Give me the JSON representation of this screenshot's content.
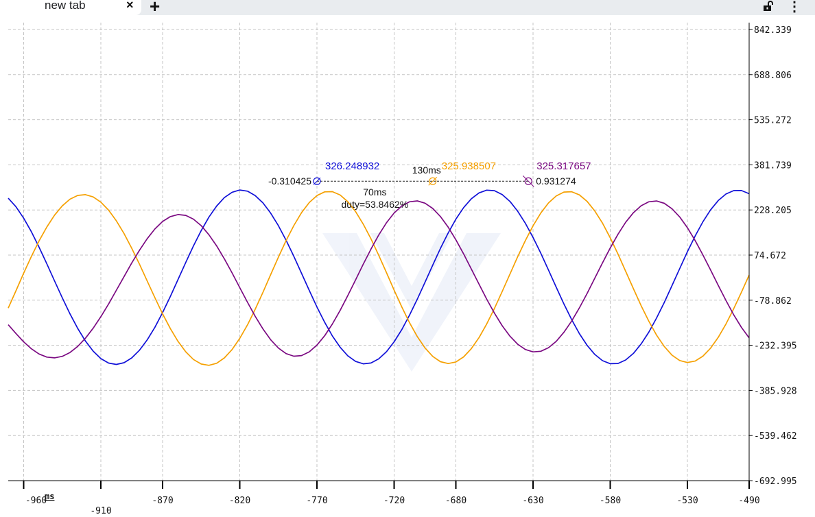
{
  "browser": {
    "tab_title": "new tab",
    "close_glyph": "×",
    "newtab_glyph": "+",
    "lock_icon": "unlock-icon",
    "menu_glyph": "⋮"
  },
  "chart_data": {
    "type": "line",
    "x_unit": "ms",
    "xlim": [
      -970,
      -490
    ],
    "ylim": [
      -692.995,
      842.339
    ],
    "y_ticks": [
      "842.339",
      "688.806",
      "535.272",
      "381.739",
      "228.205",
      "74.672",
      "-78.862",
      "-232.395",
      "-385.928",
      "-539.462",
      "-692.995"
    ],
    "x_ticks": [
      "-960",
      "-910",
      "-870",
      "-820",
      "-770",
      "-720",
      "-680",
      "-630",
      "-580",
      "-530",
      "-490"
    ],
    "grid": true,
    "series": [
      {
        "color": "#1010d8",
        "points": [
          [
            -970,
            268.2
          ],
          [
            -965,
            238.9
          ],
          [
            -960,
            200.2
          ],
          [
            -955,
            153.7
          ],
          [
            -950,
            101.3
          ],
          [
            -945,
            44.9
          ],
          [
            -940,
            -13.3
          ],
          [
            -935,
            -70.8
          ],
          [
            -930,
            -125.4
          ],
          [
            -925,
            -175.1
          ],
          [
            -920,
            -217.8
          ],
          [
            -915,
            -252.3
          ],
          [
            -910,
            -277.6
          ],
          [
            -905,
            -292.8
          ],
          [
            -900,
            -297.5
          ],
          [
            -895,
            -291.6
          ],
          [
            -890,
            -275.3
          ],
          [
            -885,
            -249.2
          ],
          [
            -880,
            -214.2
          ],
          [
            -875,
            -171.0
          ],
          [
            -870,
            -121.1
          ],
          [
            -865,
            -66.3
          ],
          [
            -860,
            -8.5
          ],
          [
            -855,
            49.8
          ],
          [
            -850,
            106.0
          ],
          [
            -845,
            158.0
          ],
          [
            -840,
            203.8
          ],
          [
            -835,
            241.6
          ],
          [
            -830,
            270.2
          ],
          [
            -825,
            288.5
          ],
          [
            -820,
            296.0
          ],
          [
            -815,
            292.2
          ],
          [
            -810,
            277.3
          ],
          [
            -805,
            252.2
          ],
          [
            -800,
            217.5
          ],
          [
            -795,
            174.7
          ],
          [
            -790,
            125.0
          ],
          [
            -785,
            70.4
          ],
          [
            -780,
            12.8
          ],
          [
            -775,
            -45.5
          ],
          [
            -770,
            -102.0
          ],
          [
            -765,
            -154.3
          ],
          [
            -760,
            -200.6
          ],
          [
            -755,
            -238.9
          ],
          [
            -750,
            -268.1
          ],
          [
            -745,
            -287.2
          ],
          [
            -740,
            -295.5
          ],
          [
            -735,
            -292.6
          ],
          [
            -730,
            -278.6
          ],
          [
            -725,
            -254.3
          ],
          [
            -720,
            -220.4
          ],
          [
            -715,
            -178.4
          ],
          [
            -710,
            -129.4
          ],
          [
            -705,
            -75.3
          ],
          [
            -700,
            -17.9
          ],
          [
            -695,
            40.5
          ],
          [
            -690,
            97.3
          ],
          [
            -685,
            149.9
          ],
          [
            -680,
            196.9
          ],
          [
            -675,
            236.1
          ],
          [
            -670,
            266.2
          ],
          [
            -665,
            286.3
          ],
          [
            -660,
            295.7
          ],
          [
            -655,
            293.8
          ],
          [
            -650,
            280.7
          ],
          [
            -645,
            257.3
          ],
          [
            -640,
            224.2
          ],
          [
            -635,
            183.0
          ],
          [
            -630,
            134.6
          ],
          [
            -625,
            80.9
          ],
          [
            -620,
            23.7
          ],
          [
            -615,
            -34.7
          ],
          [
            -610,
            -91.8
          ],
          [
            -605,
            -144.9
          ],
          [
            -600,
            -192.4
          ],
          [
            -595,
            -232.4
          ],
          [
            -590,
            -263.5
          ],
          [
            -585,
            -284.6
          ],
          [
            -580,
            -295.0
          ],
          [
            -575,
            -294.3
          ],
          [
            -570,
            -282.4
          ],
          [
            -565,
            -260.0
          ],
          [
            -560,
            -227.9
          ],
          [
            -555,
            -187.6
          ],
          [
            -550,
            -139.8
          ],
          [
            -545,
            -86.5
          ],
          [
            -540,
            -29.5
          ],
          [
            -535,
            28.8
          ],
          [
            -530,
            86.1
          ],
          [
            -525,
            139.6
          ],
          [
            -520,
            187.6
          ],
          [
            -515,
            228.4
          ],
          [
            -510,
            260.5
          ],
          [
            -505,
            282.6
          ],
          [
            -500,
            294.0
          ],
          [
            -495,
            294.3
          ],
          [
            -490,
            283.4
          ]
        ]
      },
      {
        "color": "#f5a000",
        "points": [
          [
            -970,
            -105.7
          ],
          [
            -965,
            -46.6
          ],
          [
            -960,
            13.1
          ],
          [
            -955,
            70.3
          ],
          [
            -950,
            123.3
          ],
          [
            -945,
            170.4
          ],
          [
            -940,
            210.4
          ],
          [
            -935,
            242.2
          ],
          [
            -930,
            264.8
          ],
          [
            -925,
            277.6
          ],
          [
            -920,
            280.3
          ],
          [
            -915,
            272.6
          ],
          [
            -910,
            254.8
          ],
          [
            -905,
            227.5
          ],
          [
            -900,
            191.5
          ],
          [
            -895,
            147.9
          ],
          [
            -890,
            98.1
          ],
          [
            -885,
            43.7
          ],
          [
            -880,
            -13.2
          ],
          [
            -875,
            -70.4
          ],
          [
            -870,
            -125.3
          ],
          [
            -865,
            -175.5
          ],
          [
            -860,
            -219.1
          ],
          [
            -855,
            -254.6
          ],
          [
            -850,
            -280.6
          ],
          [
            -845,
            -296.1
          ],
          [
            -840,
            -300.5
          ],
          [
            -835,
            -293.5
          ],
          [
            -830,
            -275.4
          ],
          [
            -825,
            -246.9
          ],
          [
            -820,
            -208.9
          ],
          [
            -815,
            -162.6
          ],
          [
            -810,
            -109.6
          ],
          [
            -805,
            -52.0
          ],
          [
            -800,
            8.0
          ],
          [
            -795,
            67.4
          ],
          [
            -790,
            123.9
          ],
          [
            -785,
            175.0
          ],
          [
            -780,
            218.8
          ],
          [
            -775,
            253.3
          ],
          [
            -770,
            277.3
          ],
          [
            -765,
            289.8
          ],
          [
            -760,
            290.4
          ],
          [
            -755,
            279.0
          ],
          [
            -750,
            256.1
          ],
          [
            -745,
            222.6
          ],
          [
            -740,
            180.0
          ],
          [
            -735,
            129.8
          ],
          [
            -730,
            74.1
          ],
          [
            -725,
            15.1
          ],
          [
            -720,
            -44.7
          ],
          [
            -715,
            -102.4
          ],
          [
            -710,
            -155.7
          ],
          [
            -705,
            -202.7
          ],
          [
            -700,
            -241.3
          ],
          [
            -695,
            -270.2
          ],
          [
            -690,
            -288.2
          ],
          [
            -685,
            -294.5
          ],
          [
            -680,
            -289.0
          ],
          [
            -675,
            -271.9
          ],
          [
            -670,
            -243.8
          ],
          [
            -665,
            -206.0
          ],
          [
            -660,
            -159.6
          ],
          [
            -655,
            -106.7
          ],
          [
            -650,
            -49.4
          ],
          [
            -645,
            9.9
          ],
          [
            -640,
            68.5
          ],
          [
            -635,
            124.0
          ],
          [
            -630,
            174.3
          ],
          [
            -625,
            217.6
          ],
          [
            -620,
            252.0
          ],
          [
            -615,
            276.1
          ],
          [
            -610,
            289.0
          ],
          [
            -605,
            290.2
          ],
          [
            -600,
            279.5
          ],
          [
            -595,
            257.4
          ],
          [
            -590,
            224.8
          ],
          [
            -585,
            183.1
          ],
          [
            -580,
            133.5
          ],
          [
            -575,
            78.2
          ],
          [
            -570,
            19.7
          ],
          [
            -565,
            -39.7
          ],
          [
            -560,
            -97.3
          ],
          [
            -555,
            -150.6
          ],
          [
            -550,
            -197.6
          ],
          [
            -545,
            -236.4
          ],
          [
            -540,
            -265.7
          ],
          [
            -535,
            -284.1
          ],
          [
            -530,
            -291.0
          ],
          [
            -525,
            -286.1
          ],
          [
            -520,
            -269.5
          ],
          [
            -515,
            -242.2
          ],
          [
            -510,
            -205.2
          ],
          [
            -505,
            -159.7
          ],
          [
            -500,
            -107.8
          ],
          [
            -495,
            -51.6
          ],
          [
            -490,
            6.7
          ]
        ]
      },
      {
        "color": "#7b0a82",
        "points": [
          [
            -970,
            -162.5
          ],
          [
            -965,
            -192.3
          ],
          [
            -960,
            -220.6
          ],
          [
            -955,
            -244.4
          ],
          [
            -950,
            -262.0
          ],
          [
            -945,
            -272.5
          ],
          [
            -940,
            -275.2
          ],
          [
            -935,
            -270.0
          ],
          [
            -930,
            -256.9
          ],
          [
            -925,
            -236.2
          ],
          [
            -920,
            -208.4
          ],
          [
            -915,
            -174.4
          ],
          [
            -910,
            -135.1
          ],
          [
            -905,
            -91.7
          ],
          [
            -900,
            -45.6
          ],
          [
            -895,
            1.4
          ],
          [
            -890,
            47.5
          ],
          [
            -885,
            91.1
          ],
          [
            -880,
            130.3
          ],
          [
            -875,
            163.5
          ],
          [
            -870,
            189.0
          ],
          [
            -865,
            205.6
          ],
          [
            -860,
            212.6
          ],
          [
            -855,
            209.7
          ],
          [
            -850,
            196.9
          ],
          [
            -845,
            174.7
          ],
          [
            -840,
            144.0
          ],
          [
            -835,
            105.9
          ],
          [
            -830,
            62.0
          ],
          [
            -825,
            14.0
          ],
          [
            -820,
            -36.1
          ],
          [
            -815,
            -86.0
          ],
          [
            -810,
            -133.6
          ],
          [
            -805,
            -176.7
          ],
          [
            -800,
            -213.3
          ],
          [
            -795,
            -241.7
          ],
          [
            -790,
            -260.7
          ],
          [
            -785,
            -269.4
          ],
          [
            -780,
            -267.4
          ],
          [
            -775,
            -254.6
          ],
          [
            -770,
            -231.7
          ],
          [
            -765,
            -199.7
          ],
          [
            -760,
            -159.9
          ],
          [
            -755,
            -113.7
          ],
          [
            -750,
            -63.0
          ],
          [
            -745,
            -9.8
          ],
          [
            -740,
            43.7
          ],
          [
            -735,
            95.3
          ],
          [
            -730,
            142.9
          ],
          [
            -725,
            184.5
          ],
          [
            -720,
            218.0
          ],
          [
            -715,
            242.1
          ],
          [
            -710,
            255.9
          ],
          [
            -705,
            259.0
          ],
          [
            -700,
            251.4
          ],
          [
            -695,
            233.4
          ],
          [
            -690,
            205.8
          ],
          [
            -685,
            169.7
          ],
          [
            -680,
            126.7
          ],
          [
            -675,
            78.6
          ],
          [
            -670,
            27.4
          ],
          [
            -665,
            -24.6
          ],
          [
            -660,
            -75.5
          ],
          [
            -655,
            -123.2
          ],
          [
            -650,
            -165.7
          ],
          [
            -645,
            -201.2
          ],
          [
            -640,
            -228.5
          ],
          [
            -635,
            -246.6
          ],
          [
            -630,
            -254.8
          ],
          [
            -625,
            -252.8
          ],
          [
            -620,
            -240.6
          ],
          [
            -615,
            -218.8
          ],
          [
            -610,
            -188.1
          ],
          [
            -605,
            -149.8
          ],
          [
            -600,
            -105.2
          ],
          [
            -595,
            -55.9
          ],
          [
            -590,
            -3.9
          ],
          [
            -585,
            48.3
          ],
          [
            -580,
            98.8
          ],
          [
            -575,
            145.4
          ],
          [
            -570,
            186.1
          ],
          [
            -565,
            218.9
          ],
          [
            -560,
            242.5
          ],
          [
            -555,
            256.0
          ],
          [
            -550,
            258.8
          ],
          [
            -545,
            250.8
          ],
          [
            -540,
            232.4
          ],
          [
            -535,
            204.3
          ],
          [
            -530,
            167.7
          ],
          [
            -525,
            124.2
          ],
          [
            -520,
            75.6
          ],
          [
            -515,
            23.8
          ],
          [
            -510,
            -28.8
          ],
          [
            -505,
            -80.3
          ],
          [
            -500,
            -128.5
          ],
          [
            -495,
            -171.5
          ],
          [
            -490,
            -207.2
          ]
        ]
      }
    ],
    "annotations": {
      "blue_value": "326.248932",
      "orange_value": "325.938507",
      "purple_value": "325.317657",
      "left_value": "-0.310425",
      "right_value": "0.931274",
      "span_label": "130ms",
      "inner_label": "70ms",
      "duty_label": "duty=53.8462%"
    }
  }
}
